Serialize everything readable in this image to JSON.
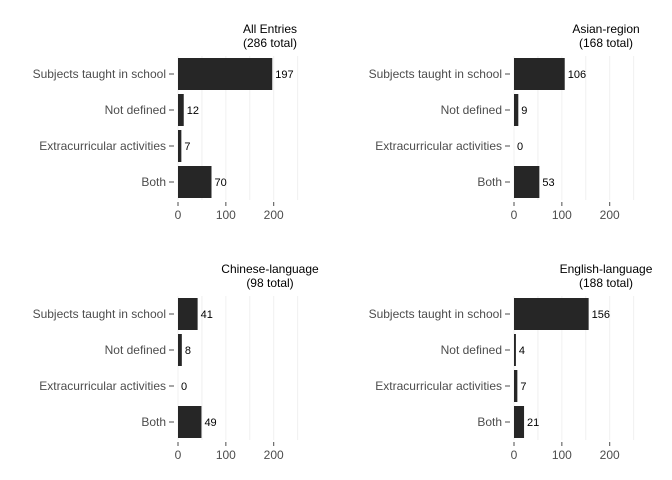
{
  "chart_data": [
    {
      "type": "bar",
      "orientation": "horizontal",
      "title_lines": [
        "All Entries",
        "(286 total)"
      ],
      "categories": [
        "Subjects taught in school",
        "Not defined",
        "Extracurricular activities",
        "Both"
      ],
      "values": [
        197,
        12,
        7,
        70
      ],
      "value_labels": [
        "197",
        "12",
        "7",
        "70"
      ],
      "xlim": [
        0,
        250
      ],
      "xticks": [
        0,
        100,
        200
      ],
      "xtick_labels": [
        "0",
        "100",
        "200"
      ],
      "grid": true,
      "color": "#262626"
    },
    {
      "type": "bar",
      "orientation": "horizontal",
      "title_lines": [
        "Asian-region",
        "(168 total)"
      ],
      "categories": [
        "Subjects taught in school",
        "Not defined",
        "Extracurricular activities",
        "Both"
      ],
      "values": [
        106,
        9,
        0,
        53
      ],
      "value_labels": [
        "106",
        "9",
        "0",
        "53"
      ],
      "xlim": [
        0,
        250
      ],
      "xticks": [
        0,
        100,
        200
      ],
      "xtick_labels": [
        "0",
        "100",
        "200"
      ],
      "grid": true,
      "color": "#262626"
    },
    {
      "type": "bar",
      "orientation": "horizontal",
      "title_lines": [
        "Chinese-language",
        "(98 total)"
      ],
      "categories": [
        "Subjects taught in school",
        "Not defined",
        "Extracurricular activities",
        "Both"
      ],
      "values": [
        41,
        8,
        0,
        49
      ],
      "value_labels": [
        "41",
        "8",
        "0",
        "49"
      ],
      "xlim": [
        0,
        250
      ],
      "xticks": [
        0,
        100,
        200
      ],
      "xtick_labels": [
        "0",
        "100",
        "200"
      ],
      "grid": true,
      "color": "#262626"
    },
    {
      "type": "bar",
      "orientation": "horizontal",
      "title_lines": [
        "English-language",
        "(188 total)"
      ],
      "categories": [
        "Subjects taught in school",
        "Not defined",
        "Extracurricular activities",
        "Both"
      ],
      "values": [
        156,
        4,
        7,
        21
      ],
      "value_labels": [
        "156",
        "4",
        "7",
        "21"
      ],
      "xlim": [
        0,
        250
      ],
      "xticks": [
        0,
        100,
        200
      ],
      "xtick_labels": [
        "0",
        "100",
        "200"
      ],
      "grid": true,
      "color": "#262626"
    }
  ]
}
